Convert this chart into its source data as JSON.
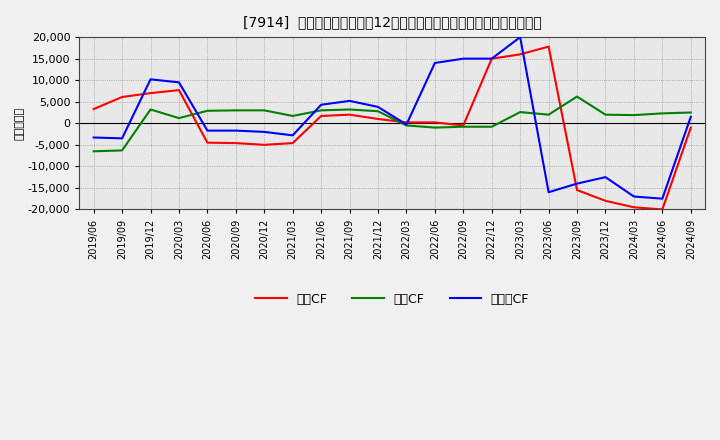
{
  "title": "[7914]  キャッシュフローの12か月移動合計の対前年同期増減額の推移",
  "ylabel": "（百万円）",
  "ylim": [
    -20000,
    20000
  ],
  "yticks": [
    -20000,
    -15000,
    -10000,
    -5000,
    0,
    5000,
    10000,
    15000,
    20000
  ],
  "labels": [
    "営業CF",
    "投資CF",
    "フリーCF"
  ],
  "colors": [
    "#ff0000",
    "#008000",
    "#0000ff"
  ],
  "x_labels": [
    "2019/06",
    "2019/09",
    "2019/12",
    "2020/03",
    "2020/06",
    "2020/09",
    "2020/12",
    "2021/03",
    "2021/06",
    "2021/09",
    "2021/12",
    "2022/03",
    "2022/06",
    "2022/09",
    "2022/12",
    "2023/03",
    "2023/06",
    "2023/09",
    "2023/12",
    "2024/03",
    "2024/06",
    "2024/09"
  ],
  "operating_cf": [
    3300,
    6100,
    7000,
    7700,
    -4500,
    -4600,
    -5000,
    -4600,
    1700,
    2000,
    1000,
    200,
    200,
    -500,
    15000,
    16000,
    17800,
    -15500,
    -18000,
    -19500,
    -20000,
    -1000
  ],
  "investing_cf": [
    -6500,
    -6300,
    3200,
    1200,
    2900,
    3000,
    3000,
    1700,
    3000,
    3200,
    2800,
    -500,
    -1000,
    -800,
    -800,
    2600,
    2000,
    6200,
    2000,
    1900,
    2300,
    2500
  ],
  "free_cf": [
    -3300,
    -3500,
    10200,
    9500,
    -1700,
    -1700,
    -2000,
    -2800,
    4300,
    5200,
    3800,
    -300,
    14000,
    15000,
    15000,
    20000,
    -16000,
    -14000,
    -12500,
    -17000,
    -17500,
    1500
  ],
  "background_color": "#f0f0f0",
  "plot_bg_color": "#e8e8e8",
  "grid_color": "#888888",
  "figsize": [
    7.2,
    4.4
  ],
  "dpi": 100
}
